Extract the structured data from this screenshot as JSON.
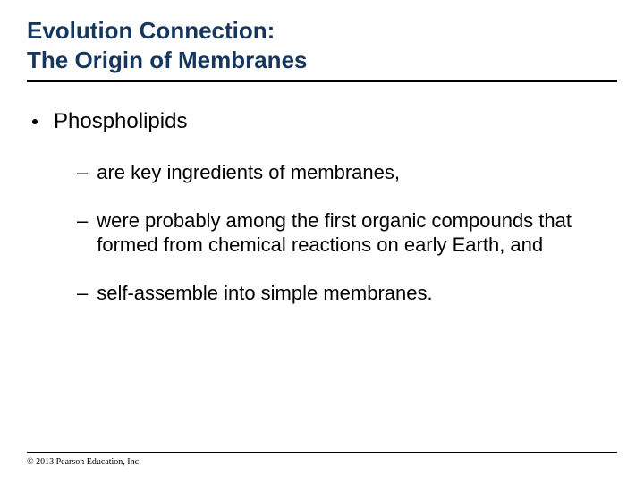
{
  "title": {
    "line1": "Evolution Connection:",
    "line2": "The Origin of Membranes",
    "color": "#16365d",
    "fontsize": 26
  },
  "body": {
    "color": "#000000",
    "l1_fontsize": 24,
    "l2_fontsize": 22,
    "l1": [
      {
        "text": "Phospholipids"
      }
    ],
    "l2": [
      {
        "text": "are key ingredients of membranes,"
      },
      {
        "text": "were probably among the first organic compounds that formed from chemical reactions on early Earth, and"
      },
      {
        "text": "self-assemble into simple membranes."
      }
    ]
  },
  "footer": {
    "copyright": "© 2013 Pearson Education, Inc.",
    "fontsize": 10,
    "color": "#000000"
  },
  "dash_glyph": "–"
}
